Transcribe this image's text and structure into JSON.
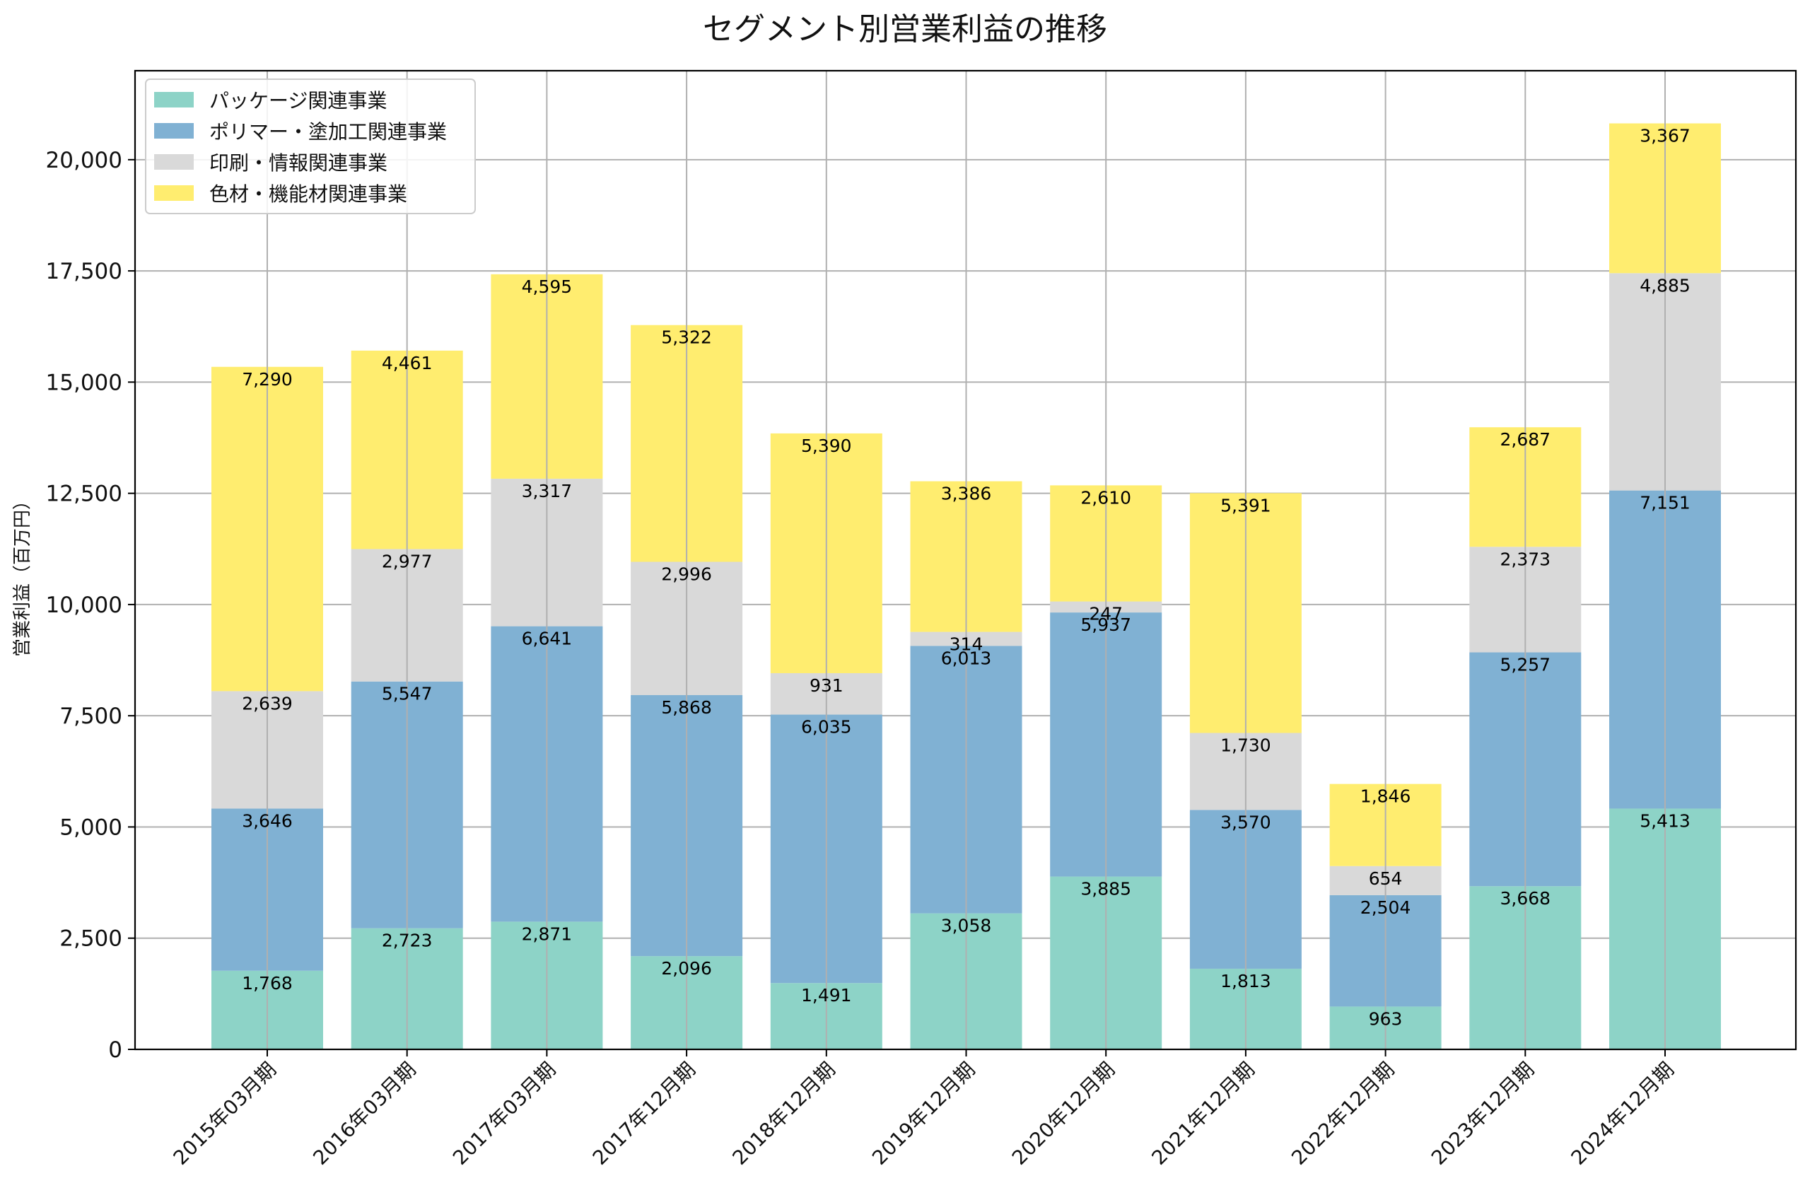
{
  "chart_data": {
    "type": "bar",
    "stacked": true,
    "title": "セグメント別営業利益の推移",
    "xlabel": "",
    "ylabel": "営業利益（百万円）",
    "ylim": [
      0,
      22000
    ],
    "yticks": [
      0,
      2500,
      5000,
      7500,
      10000,
      12500,
      15000,
      17500,
      20000
    ],
    "ytick_labels": [
      "0",
      "2,500",
      "5,000",
      "7,500",
      "10,000",
      "12,500",
      "15,000",
      "17,500",
      "20,000"
    ],
    "grid": true,
    "legend_position": "top-left",
    "categories": [
      "2015年03月期",
      "2016年03月期",
      "2017年03月期",
      "2017年12月期",
      "2018年12月期",
      "2019年12月期",
      "2020年12月期",
      "2021年12月期",
      "2022年12月期",
      "2023年12月期",
      "2024年12月期"
    ],
    "series": [
      {
        "name": "パッケージ関連事業",
        "color": "#8dd3c7",
        "values": [
          1768,
          2723,
          2871,
          2096,
          1491,
          3058,
          3885,
          1813,
          963,
          3668,
          5413
        ]
      },
      {
        "name": "ポリマー・塗加工関連事業",
        "color": "#80b1d3",
        "values": [
          3646,
          5547,
          6641,
          5868,
          6035,
          6013,
          5937,
          3570,
          2504,
          5257,
          7151
        ]
      },
      {
        "name": "印刷・情報関連事業",
        "color": "#d9d9d9",
        "values": [
          2639,
          2977,
          3317,
          2996,
          931,
          314,
          247,
          1730,
          654,
          2373,
          4885
        ]
      },
      {
        "name": "色材・機能材関連事業",
        "color": "#ffed6f",
        "values": [
          7290,
          4461,
          4595,
          5322,
          5390,
          3386,
          2610,
          5391,
          1846,
          2687,
          3367
        ]
      }
    ]
  }
}
